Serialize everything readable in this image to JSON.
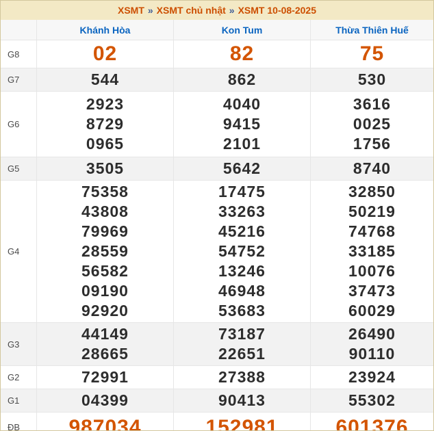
{
  "breadcrumb": {
    "items": [
      "XSMT",
      "XSMT chủ nhật",
      "XSMT 10-08-2025"
    ],
    "separator": "»"
  },
  "colors": {
    "title_bg": "#f3e9c5",
    "border": "#d3c79d",
    "link_orange": "#cc4e00",
    "separator_blue": "#3c5a96",
    "header_blue": "#0a64c0",
    "header_bg": "#f7f7f7",
    "value_dark": "#2d2d2d",
    "highlight_orange": "#d35400",
    "row_alt_bg": "#f2f2f2"
  },
  "table": {
    "columns": [
      "Khánh Hòa",
      "Kon Tum",
      "Thừa Thiên Huế"
    ],
    "rows": [
      {
        "label": "G8",
        "highlight": true,
        "cells": [
          [
            "02"
          ],
          [
            "82"
          ],
          [
            "75"
          ]
        ]
      },
      {
        "label": "G7",
        "highlight": false,
        "cells": [
          [
            "544"
          ],
          [
            "862"
          ],
          [
            "530"
          ]
        ]
      },
      {
        "label": "G6",
        "highlight": false,
        "cells": [
          [
            "2923",
            "8729",
            "0965"
          ],
          [
            "4040",
            "9415",
            "2101"
          ],
          [
            "3616",
            "0025",
            "1756"
          ]
        ]
      },
      {
        "label": "G5",
        "highlight": false,
        "cells": [
          [
            "3505"
          ],
          [
            "5642"
          ],
          [
            "8740"
          ]
        ]
      },
      {
        "label": "G4",
        "highlight": false,
        "cells": [
          [
            "75358",
            "43808",
            "79969",
            "28559",
            "56582",
            "09190",
            "92920"
          ],
          [
            "17475",
            "33263",
            "45216",
            "54752",
            "13246",
            "46948",
            "53683"
          ],
          [
            "32850",
            "50219",
            "74768",
            "33185",
            "10076",
            "37473",
            "60029"
          ]
        ]
      },
      {
        "label": "G3",
        "highlight": false,
        "cells": [
          [
            "44149",
            "28665"
          ],
          [
            "73187",
            "22651"
          ],
          [
            "26490",
            "90110"
          ]
        ]
      },
      {
        "label": "G2",
        "highlight": false,
        "cells": [
          [
            "72991"
          ],
          [
            "27388"
          ],
          [
            "23924"
          ]
        ]
      },
      {
        "label": "G1",
        "highlight": false,
        "cells": [
          [
            "04399"
          ],
          [
            "90413"
          ],
          [
            "55302"
          ]
        ]
      },
      {
        "label": "ĐB",
        "highlight": true,
        "cells": [
          [
            "987034"
          ],
          [
            "152981"
          ],
          [
            "601376"
          ]
        ]
      }
    ]
  }
}
